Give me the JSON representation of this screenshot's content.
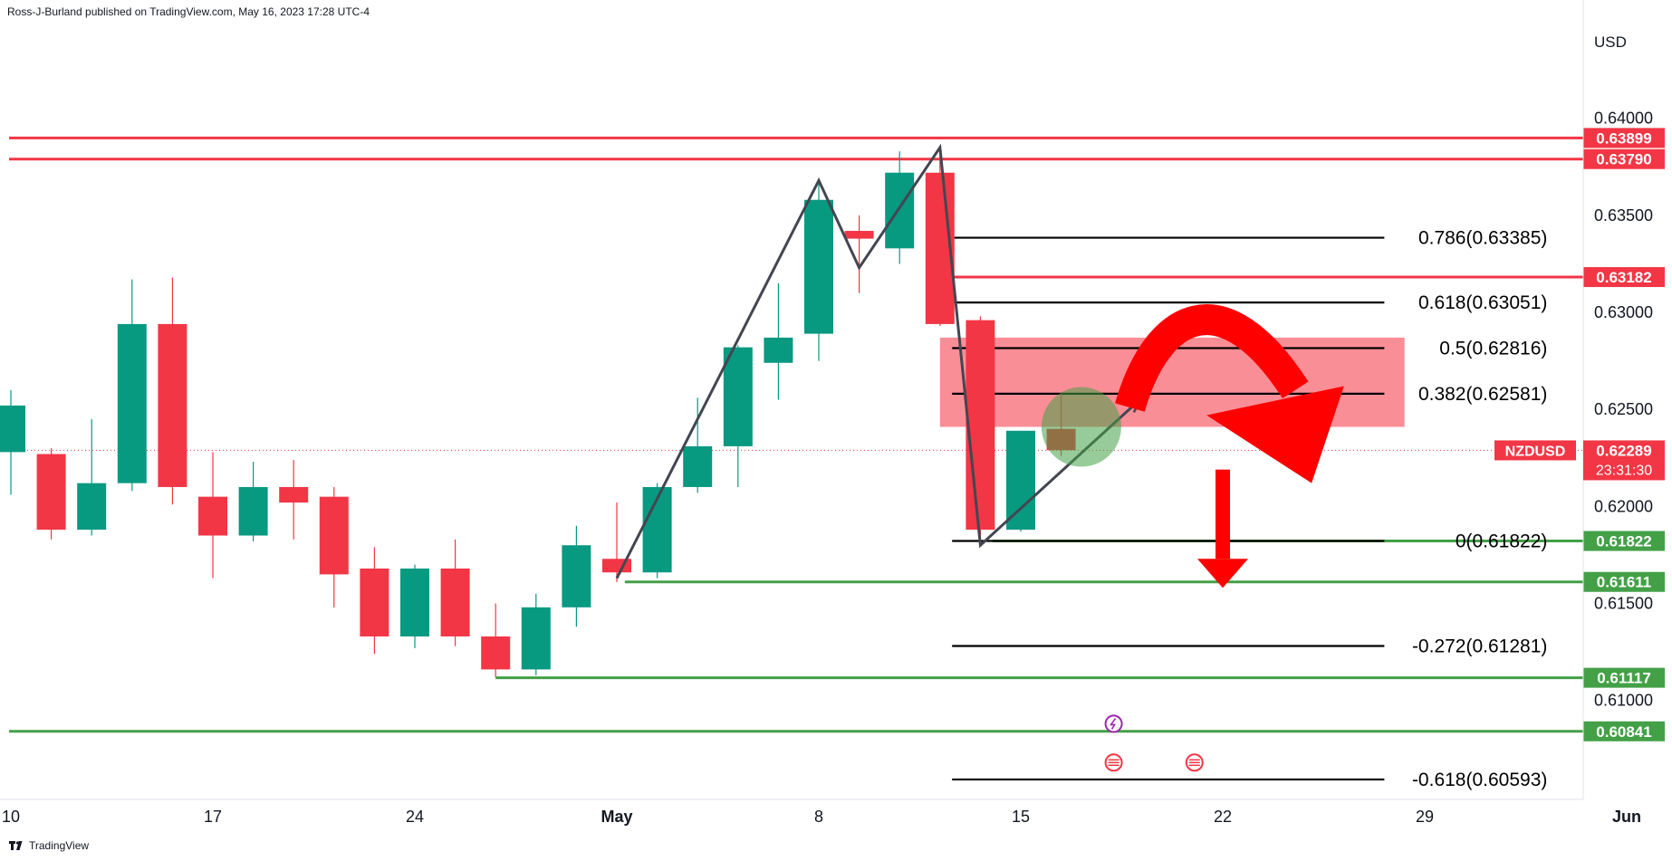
{
  "header": {
    "publisher_text": "Ross-J-Burland published on TradingView.com, May 16, 2023 17:28 UTC-4"
  },
  "footer": {
    "brand": "TradingView",
    "logo_icon": "tradingview-logo-icon"
  },
  "colors": {
    "up": "#089981",
    "down": "#f23645",
    "resistance": "#f23645",
    "support": "#43a047",
    "fib": "#000000",
    "pattern": "#434651",
    "zone": "#f7525f",
    "background": "#ffffff"
  },
  "chart_data": {
    "type": "candlestick",
    "symbol": "NZDUSD",
    "currency": "USD",
    "ylim": [
      0.6049,
      0.6447
    ],
    "x_ticks": [
      {
        "label": "10",
        "bar": 0
      },
      {
        "label": "17",
        "bar": 5
      },
      {
        "label": "24",
        "bar": 10
      },
      {
        "label": "May",
        "bar": 15
      },
      {
        "label": "8",
        "bar": 20
      },
      {
        "label": "15",
        "bar": 25
      },
      {
        "label": "22",
        "bar": 30
      },
      {
        "label": "29",
        "bar": 35
      },
      {
        "label": "Jun",
        "bar": 40
      }
    ],
    "y_ticks": [
      {
        "label": "0.64000",
        "value": 0.64
      },
      {
        "label": "0.63500",
        "value": 0.635
      },
      {
        "label": "0.63000",
        "value": 0.63
      },
      {
        "label": "0.62500",
        "value": 0.625
      },
      {
        "label": "0.62000",
        "value": 0.62
      },
      {
        "label": "0.61500",
        "value": 0.615
      },
      {
        "label": "0.61000",
        "value": 0.61
      }
    ],
    "candles": [
      {
        "bar": 0,
        "o": 0.6228,
        "h": 0.626,
        "l": 0.6206,
        "c": 0.6252
      },
      {
        "bar": 1,
        "o": 0.6227,
        "h": 0.623,
        "l": 0.6183,
        "c": 0.6188
      },
      {
        "bar": 2,
        "o": 0.6188,
        "h": 0.6245,
        "l": 0.6185,
        "c": 0.6212
      },
      {
        "bar": 3,
        "o": 0.6212,
        "h": 0.6317,
        "l": 0.6208,
        "c": 0.6294
      },
      {
        "bar": 4,
        "o": 0.6294,
        "h": 0.6318,
        "l": 0.6201,
        "c": 0.621
      },
      {
        "bar": 5,
        "o": 0.6205,
        "h": 0.6228,
        "l": 0.6163,
        "c": 0.6185
      },
      {
        "bar": 6,
        "o": 0.6185,
        "h": 0.6223,
        "l": 0.6182,
        "c": 0.621
      },
      {
        "bar": 7,
        "o": 0.621,
        "h": 0.6224,
        "l": 0.6183,
        "c": 0.6202
      },
      {
        "bar": 8,
        "o": 0.6205,
        "h": 0.621,
        "l": 0.6148,
        "c": 0.6165
      },
      {
        "bar": 9,
        "o": 0.6168,
        "h": 0.6179,
        "l": 0.6124,
        "c": 0.6133
      },
      {
        "bar": 10,
        "o": 0.6133,
        "h": 0.617,
        "l": 0.6127,
        "c": 0.6168
      },
      {
        "bar": 11,
        "o": 0.6168,
        "h": 0.6183,
        "l": 0.6128,
        "c": 0.6133
      },
      {
        "bar": 12,
        "o": 0.6133,
        "h": 0.615,
        "l": 0.6112,
        "c": 0.6116
      },
      {
        "bar": 13,
        "o": 0.6116,
        "h": 0.6155,
        "l": 0.6113,
        "c": 0.6148
      },
      {
        "bar": 14,
        "o": 0.6148,
        "h": 0.619,
        "l": 0.6138,
        "c": 0.618
      },
      {
        "bar": 15,
        "o": 0.6173,
        "h": 0.6202,
        "l": 0.6161,
        "c": 0.6166
      },
      {
        "bar": 16,
        "o": 0.6166,
        "h": 0.6212,
        "l": 0.6163,
        "c": 0.621
      },
      {
        "bar": 17,
        "o": 0.621,
        "h": 0.6256,
        "l": 0.6207,
        "c": 0.6231
      },
      {
        "bar": 18,
        "o": 0.6231,
        "h": 0.6283,
        "l": 0.621,
        "c": 0.6282
      },
      {
        "bar": 19,
        "o": 0.6274,
        "h": 0.6315,
        "l": 0.6255,
        "c": 0.6287
      },
      {
        "bar": 20,
        "o": 0.6289,
        "h": 0.6368,
        "l": 0.6275,
        "c": 0.6358
      },
      {
        "bar": 21,
        "o": 0.6342,
        "h": 0.635,
        "l": 0.631,
        "c": 0.6338
      },
      {
        "bar": 22,
        "o": 0.6333,
        "h": 0.6383,
        "l": 0.6325,
        "c": 0.6372
      },
      {
        "bar": 23,
        "o": 0.6372,
        "h": 0.6381,
        "l": 0.6293,
        "c": 0.6294
      },
      {
        "bar": 24,
        "o": 0.6296,
        "h": 0.6298,
        "l": 0.6183,
        "c": 0.6188
      },
      {
        "bar": 25,
        "o": 0.6188,
        "h": 0.6239,
        "l": 0.6187,
        "c": 0.6239
      },
      {
        "bar": 26,
        "o": 0.624,
        "h": 0.6258,
        "l": 0.6226,
        "c": 0.6229
      }
    ],
    "horizontal_lines": [
      {
        "name": "resistance-high",
        "value": 0.63899,
        "label": "0.63899",
        "color": "#f23645",
        "from_bar": 0
      },
      {
        "name": "resistance-mid",
        "value": 0.6379,
        "label": "0.63790",
        "color": "#f23645",
        "from_bar": 0
      },
      {
        "name": "resistance-low",
        "value": 0.63182,
        "label": "0.63182",
        "color": "#f23645",
        "from_bar": 22.8
      },
      {
        "name": "support-fib-zero",
        "value": 0.61822,
        "label": "0.61822",
        "color": "#43a047",
        "from_bar": 24.3
      },
      {
        "name": "support-may-low",
        "value": 0.61611,
        "label": "0.61611",
        "color": "#43a047",
        "from_bar": 15.2
      },
      {
        "name": "support-april-low",
        "value": 0.61117,
        "label": "0.61117",
        "color": "#43a047",
        "from_bar": 12
      },
      {
        "name": "support-major",
        "value": 0.60841,
        "label": "0.60841",
        "color": "#43a047",
        "from_bar": 0
      }
    ],
    "fib_levels": [
      {
        "label": "0.786(0.63385)",
        "value": 0.63385
      },
      {
        "label": "0.618(0.63051)",
        "value": 0.63051
      },
      {
        "label": "0.5(0.62816)",
        "value": 0.62816
      },
      {
        "label": "0.382(0.62581)",
        "value": 0.62581
      },
      {
        "label": "0(0.61822)",
        "value": 0.61822
      },
      {
        "label": "-0.272(0.61281)",
        "value": 0.61281
      },
      {
        "label": "-0.618(0.60593)",
        "value": 0.60593
      }
    ],
    "price_tag": {
      "symbol": "NZDUSD",
      "price": "0.62289",
      "value": 0.62289,
      "countdown": "23:31:30"
    },
    "pattern_points": [
      {
        "bar": 15,
        "value": 0.6163
      },
      {
        "bar": 20,
        "value": 0.6368
      },
      {
        "bar": 21,
        "value": 0.6323
      },
      {
        "bar": 23,
        "value": 0.6385
      },
      {
        "bar": 24,
        "value": 0.618
      },
      {
        "bar": 28,
        "value": 0.6256
      }
    ],
    "zone": {
      "from_bar": 23,
      "to_bar": 34.5,
      "top": 0.6287,
      "bottom": 0.6241
    }
  }
}
